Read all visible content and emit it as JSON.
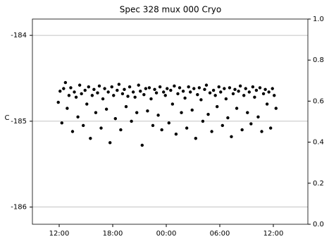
{
  "chart_data": {
    "type": "scatter",
    "title": "Spec 328 mux 000 Cryo",
    "y_label": "C",
    "color": "#000000",
    "x": [
      11.9,
      12.1,
      12.3,
      12.5,
      12.7,
      12.9,
      13.1,
      13.3,
      13.5,
      13.7,
      13.9,
      14.1,
      14.3,
      14.5,
      14.7,
      14.9,
      15.1,
      15.3,
      15.5,
      15.7,
      15.9,
      16.1,
      16.3,
      16.5,
      16.7,
      16.9,
      17.1,
      17.3,
      17.5,
      17.7,
      17.9,
      18.1,
      18.3,
      18.5,
      18.7,
      18.9,
      19.1,
      19.3,
      19.5,
      19.7,
      19.9,
      20.1,
      20.3,
      20.5,
      20.7,
      20.9,
      21.1,
      21.3,
      21.5,
      21.7,
      21.9,
      22.1,
      22.3,
      22.5,
      22.7,
      22.9,
      23.1,
      23.3,
      23.5,
      23.7,
      23.9,
      24.1,
      24.3,
      24.5,
      24.7,
      24.9,
      25.1,
      25.3,
      25.5,
      25.7,
      25.9,
      26.1,
      26.3,
      26.5,
      26.7,
      26.9,
      27.1,
      27.3,
      27.5,
      27.7,
      27.9,
      28.1,
      28.3,
      28.5,
      28.7,
      28.9,
      29.1,
      29.3,
      29.5,
      29.7,
      29.9,
      30.1,
      30.3,
      30.5,
      30.7,
      30.9,
      31.1,
      31.3,
      31.5,
      31.7,
      31.9,
      32.1,
      32.3,
      32.5,
      32.7,
      32.9,
      33.1,
      33.3,
      33.5,
      33.7,
      33.9,
      34.1,
      34.3,
      34.5,
      34.7,
      34.9,
      35.1,
      35.3,
      35.5,
      35.7,
      35.9,
      36.1,
      36.3
    ],
    "values": [
      -184.78,
      -184.65,
      -185.02,
      -184.62,
      -184.55,
      -184.85,
      -184.7,
      -184.61,
      -185.12,
      -184.66,
      -184.72,
      -184.95,
      -184.58,
      -184.68,
      -185.05,
      -184.64,
      -184.8,
      -184.6,
      -185.2,
      -184.7,
      -184.63,
      -184.9,
      -184.67,
      -184.59,
      -185.08,
      -184.74,
      -184.62,
      -184.86,
      -184.66,
      -185.25,
      -184.6,
      -184.7,
      -184.97,
      -184.64,
      -184.57,
      -185.1,
      -184.68,
      -184.63,
      -184.83,
      -184.71,
      -184.6,
      -185.0,
      -184.66,
      -184.72,
      -184.9,
      -184.58,
      -184.65,
      -185.28,
      -184.69,
      -184.62,
      -184.88,
      -184.61,
      -184.74,
      -185.05,
      -184.63,
      -184.67,
      -184.93,
      -184.6,
      -185.1,
      -184.66,
      -184.7,
      -184.62,
      -185.02,
      -184.64,
      -184.8,
      -184.59,
      -185.15,
      -184.68,
      -184.61,
      -184.9,
      -184.65,
      -184.73,
      -185.08,
      -184.6,
      -184.66,
      -184.87,
      -184.62,
      -185.2,
      -184.69,
      -184.61,
      -184.75,
      -185.0,
      -184.63,
      -184.58,
      -184.92,
      -184.67,
      -185.12,
      -184.64,
      -184.7,
      -184.83,
      -184.6,
      -184.66,
      -185.05,
      -184.62,
      -184.74,
      -184.96,
      -184.61,
      -185.18,
      -184.68,
      -184.63,
      -184.85,
      -184.65,
      -184.59,
      -185.1,
      -184.7,
      -184.62,
      -184.9,
      -184.66,
      -185.03,
      -184.6,
      -184.72,
      -184.64,
      -184.95,
      -184.61,
      -185.12,
      -184.68,
      -184.63,
      -184.8,
      -184.66,
      -185.08,
      -184.62,
      -184.7,
      -184.85
    ],
    "xlim": [
      9,
      39.87
    ],
    "xticks": [
      {
        "value": 12,
        "label": "12:00"
      },
      {
        "value": 18,
        "label": "18:00"
      },
      {
        "value": 24,
        "label": "00:00"
      },
      {
        "value": 30,
        "label": "06:00"
      },
      {
        "value": 36,
        "label": "12:00"
      }
    ],
    "ylim": [
      -186.2,
      -183.81
    ],
    "yticks": [
      -186,
      -185,
      -184
    ],
    "y2lim": [
      0,
      1
    ],
    "y2ticks": [
      {
        "value": 0,
        "label": "0.0"
      },
      0.2,
      0.4,
      0.6,
      0.8,
      {
        "value": 1,
        "label": "1.0"
      }
    ],
    "grid": true
  }
}
